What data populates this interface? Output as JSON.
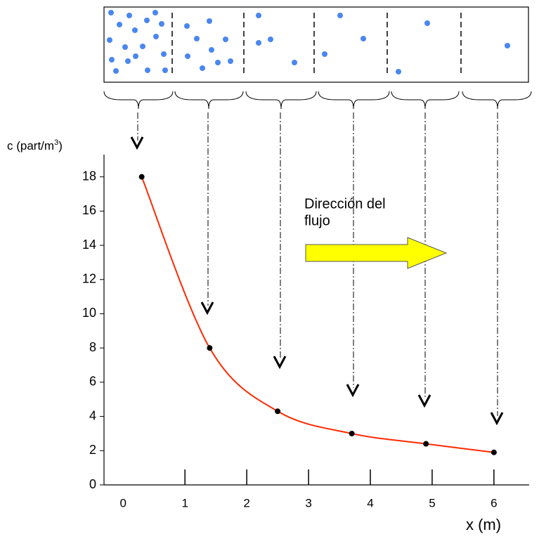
{
  "chart_data": {
    "type": "line",
    "y_label": {
      "text": "c (part/m",
      "superscript": "3",
      "suffix": ")"
    },
    "x_label": "x (m)",
    "annotation": [
      "Dirección del",
      "flujo"
    ],
    "x": [
      0.3,
      1.4,
      2.5,
      3.7,
      4.9,
      6
    ],
    "series": [
      {
        "color": "#ff2a00",
        "marker_color": "#000000",
        "values": [
          18,
          8,
          4.3,
          3,
          2.4,
          1.9
        ]
      }
    ],
    "xlim": [
      -0.31,
      6.57
    ],
    "xticks": [
      0,
      1,
      2,
      3,
      4,
      5,
      6
    ],
    "ylim": [
      0,
      19.3
    ],
    "yticks": [
      0,
      2,
      4,
      6,
      8,
      10,
      12,
      14,
      16,
      18
    ]
  }
}
